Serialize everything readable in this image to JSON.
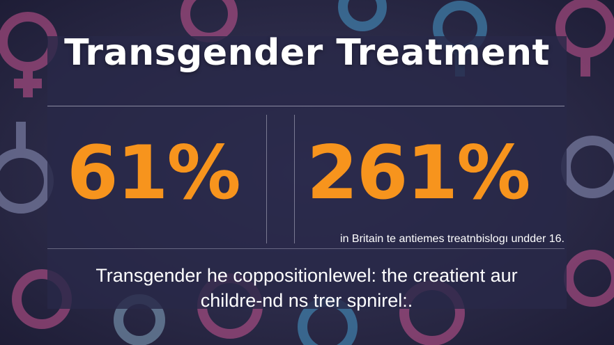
{
  "title": "Transgender Treatment",
  "stats": [
    {
      "value": "61%"
    },
    {
      "value": "261%"
    }
  ],
  "caption": "in Britain te antiemes treatnbislogı undder 16.",
  "description_line1": "Transgender he coppositionlewel: the creatient aur",
  "description_line2": "childre-nd ns trer spnirel:.",
  "colors": {
    "accent": "#f7941d",
    "text": "#ffffff",
    "background": "#2b2a4a",
    "pink": "#d85a9a",
    "blue": "#4aa6d8"
  },
  "background_icons": [
    "female-symbol-icon",
    "male-symbol-icon",
    "transgender-symbol-icon",
    "heart-icon"
  ]
}
